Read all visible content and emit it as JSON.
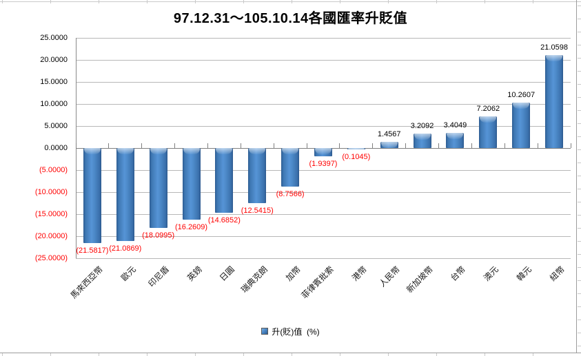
{
  "chart": {
    "title": "97.12.31～105.10.14各國匯率升貶值",
    "legend_label": "升(貶)值  (%)"
  },
  "chart_data": {
    "type": "bar",
    "title": "97.12.31～105.10.14各國匯率升貶值",
    "xlabel": "",
    "ylabel": "",
    "ylim": [
      -25,
      25
    ],
    "y_tick_step": 5,
    "y_tick_labels": [
      "25.0000",
      "20.0000",
      "15.0000",
      "10.0000",
      "5.0000",
      "0.0000",
      "(5.0000)",
      "(10.0000)",
      "(15.0000)",
      "(20.0000)",
      "(25.0000)"
    ],
    "grid": true,
    "legend_position": "bottom",
    "categories": [
      "馬來西亞幣",
      "歐元",
      "印尼盾",
      "英鎊",
      "日圓",
      "瑞典克朗",
      "加幣",
      "菲律賓批索",
      "港幣",
      "人民幣",
      "新加坡幣",
      "台幣",
      "澳元",
      "韓元",
      "紐幣"
    ],
    "series": [
      {
        "name": "升(貶)值  (%)",
        "values": [
          -21.5817,
          -21.0869,
          -18.0995,
          -16.2609,
          -14.6852,
          -12.5415,
          -8.7566,
          -1.9397,
          -0.1045,
          1.4567,
          3.2092,
          3.4049,
          7.2062,
          10.2607,
          21.0598
        ]
      }
    ],
    "data_labels": [
      "(21.5817)",
      "(21.0869)",
      "(18.0995)",
      "(16.2609)",
      "(14.6852)",
      "(12.5415)",
      "(8.7566)",
      "(1.9397)",
      "(0.1045)",
      "1.4567",
      "3.2092",
      "3.4049",
      "7.2062",
      "10.2607",
      "21.0598"
    ],
    "colors": {
      "bar": "#4c89c8",
      "bar_dark_edge": "#2d5c92",
      "negative_text": "#ff0000",
      "positive_text": "#000000",
      "gridline": "#b7b7b7"
    }
  }
}
